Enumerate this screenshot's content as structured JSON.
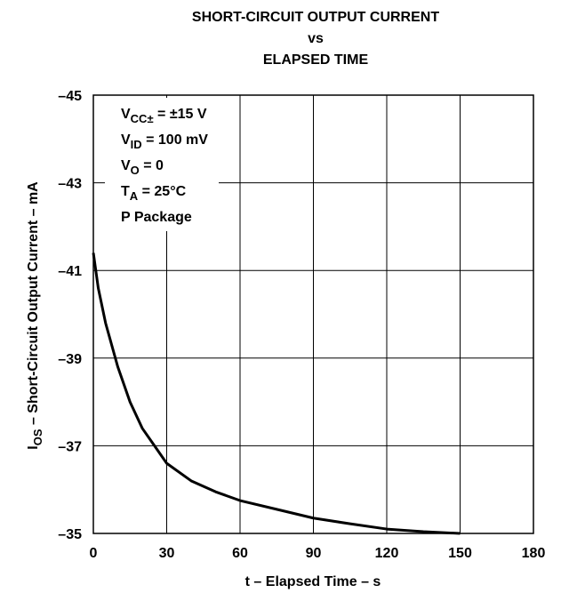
{
  "chart_data": {
    "type": "line",
    "title": [
      "SHORT-CIRCUIT OUTPUT CURRENT",
      "vs",
      "ELAPSED TIME"
    ],
    "xlabel": "t – Elapsed Time – s",
    "ylabel": {
      "main": "I",
      "sub": "OS",
      "rest": "  – Short-Circuit Output Current – mA"
    },
    "annotations": [
      {
        "main": "V",
        "sub": "CC±",
        "rest": " = ±15 V"
      },
      {
        "main": "V",
        "sub": "ID",
        "rest": " = 100 mV"
      },
      {
        "main": "V",
        "sub": "O",
        "rest": " = 0"
      },
      {
        "main": "T",
        "sub": "A",
        "rest": " = 25°C"
      },
      {
        "main": "P Package"
      }
    ],
    "x": [
      0,
      2,
      5,
      10,
      15,
      20,
      25,
      30,
      40,
      50,
      60,
      75,
      90,
      105,
      120,
      135,
      150
    ],
    "series": [
      {
        "name": "IOS",
        "color": "#000000",
        "values": [
          -41.4,
          -40.6,
          -39.8,
          -38.8,
          -38.0,
          -37.4,
          -37.0,
          -36.6,
          -36.2,
          -35.95,
          -35.75,
          -35.55,
          -35.35,
          -35.22,
          -35.1,
          -35.04,
          -35.0
        ]
      }
    ],
    "xlim": [
      0,
      180
    ],
    "xticks": [
      0,
      30,
      60,
      90,
      120,
      150,
      180
    ],
    "ylim": [
      -35,
      -45
    ],
    "yticks": [
      {
        "value": -45,
        "label": "–45"
      },
      {
        "value": -43,
        "label": "–43"
      },
      {
        "value": -41,
        "label": "–41"
      },
      {
        "value": -39,
        "label": "–39"
      },
      {
        "value": -37,
        "label": "–37"
      },
      {
        "value": -35,
        "label": "–35"
      }
    ],
    "grid": true
  }
}
